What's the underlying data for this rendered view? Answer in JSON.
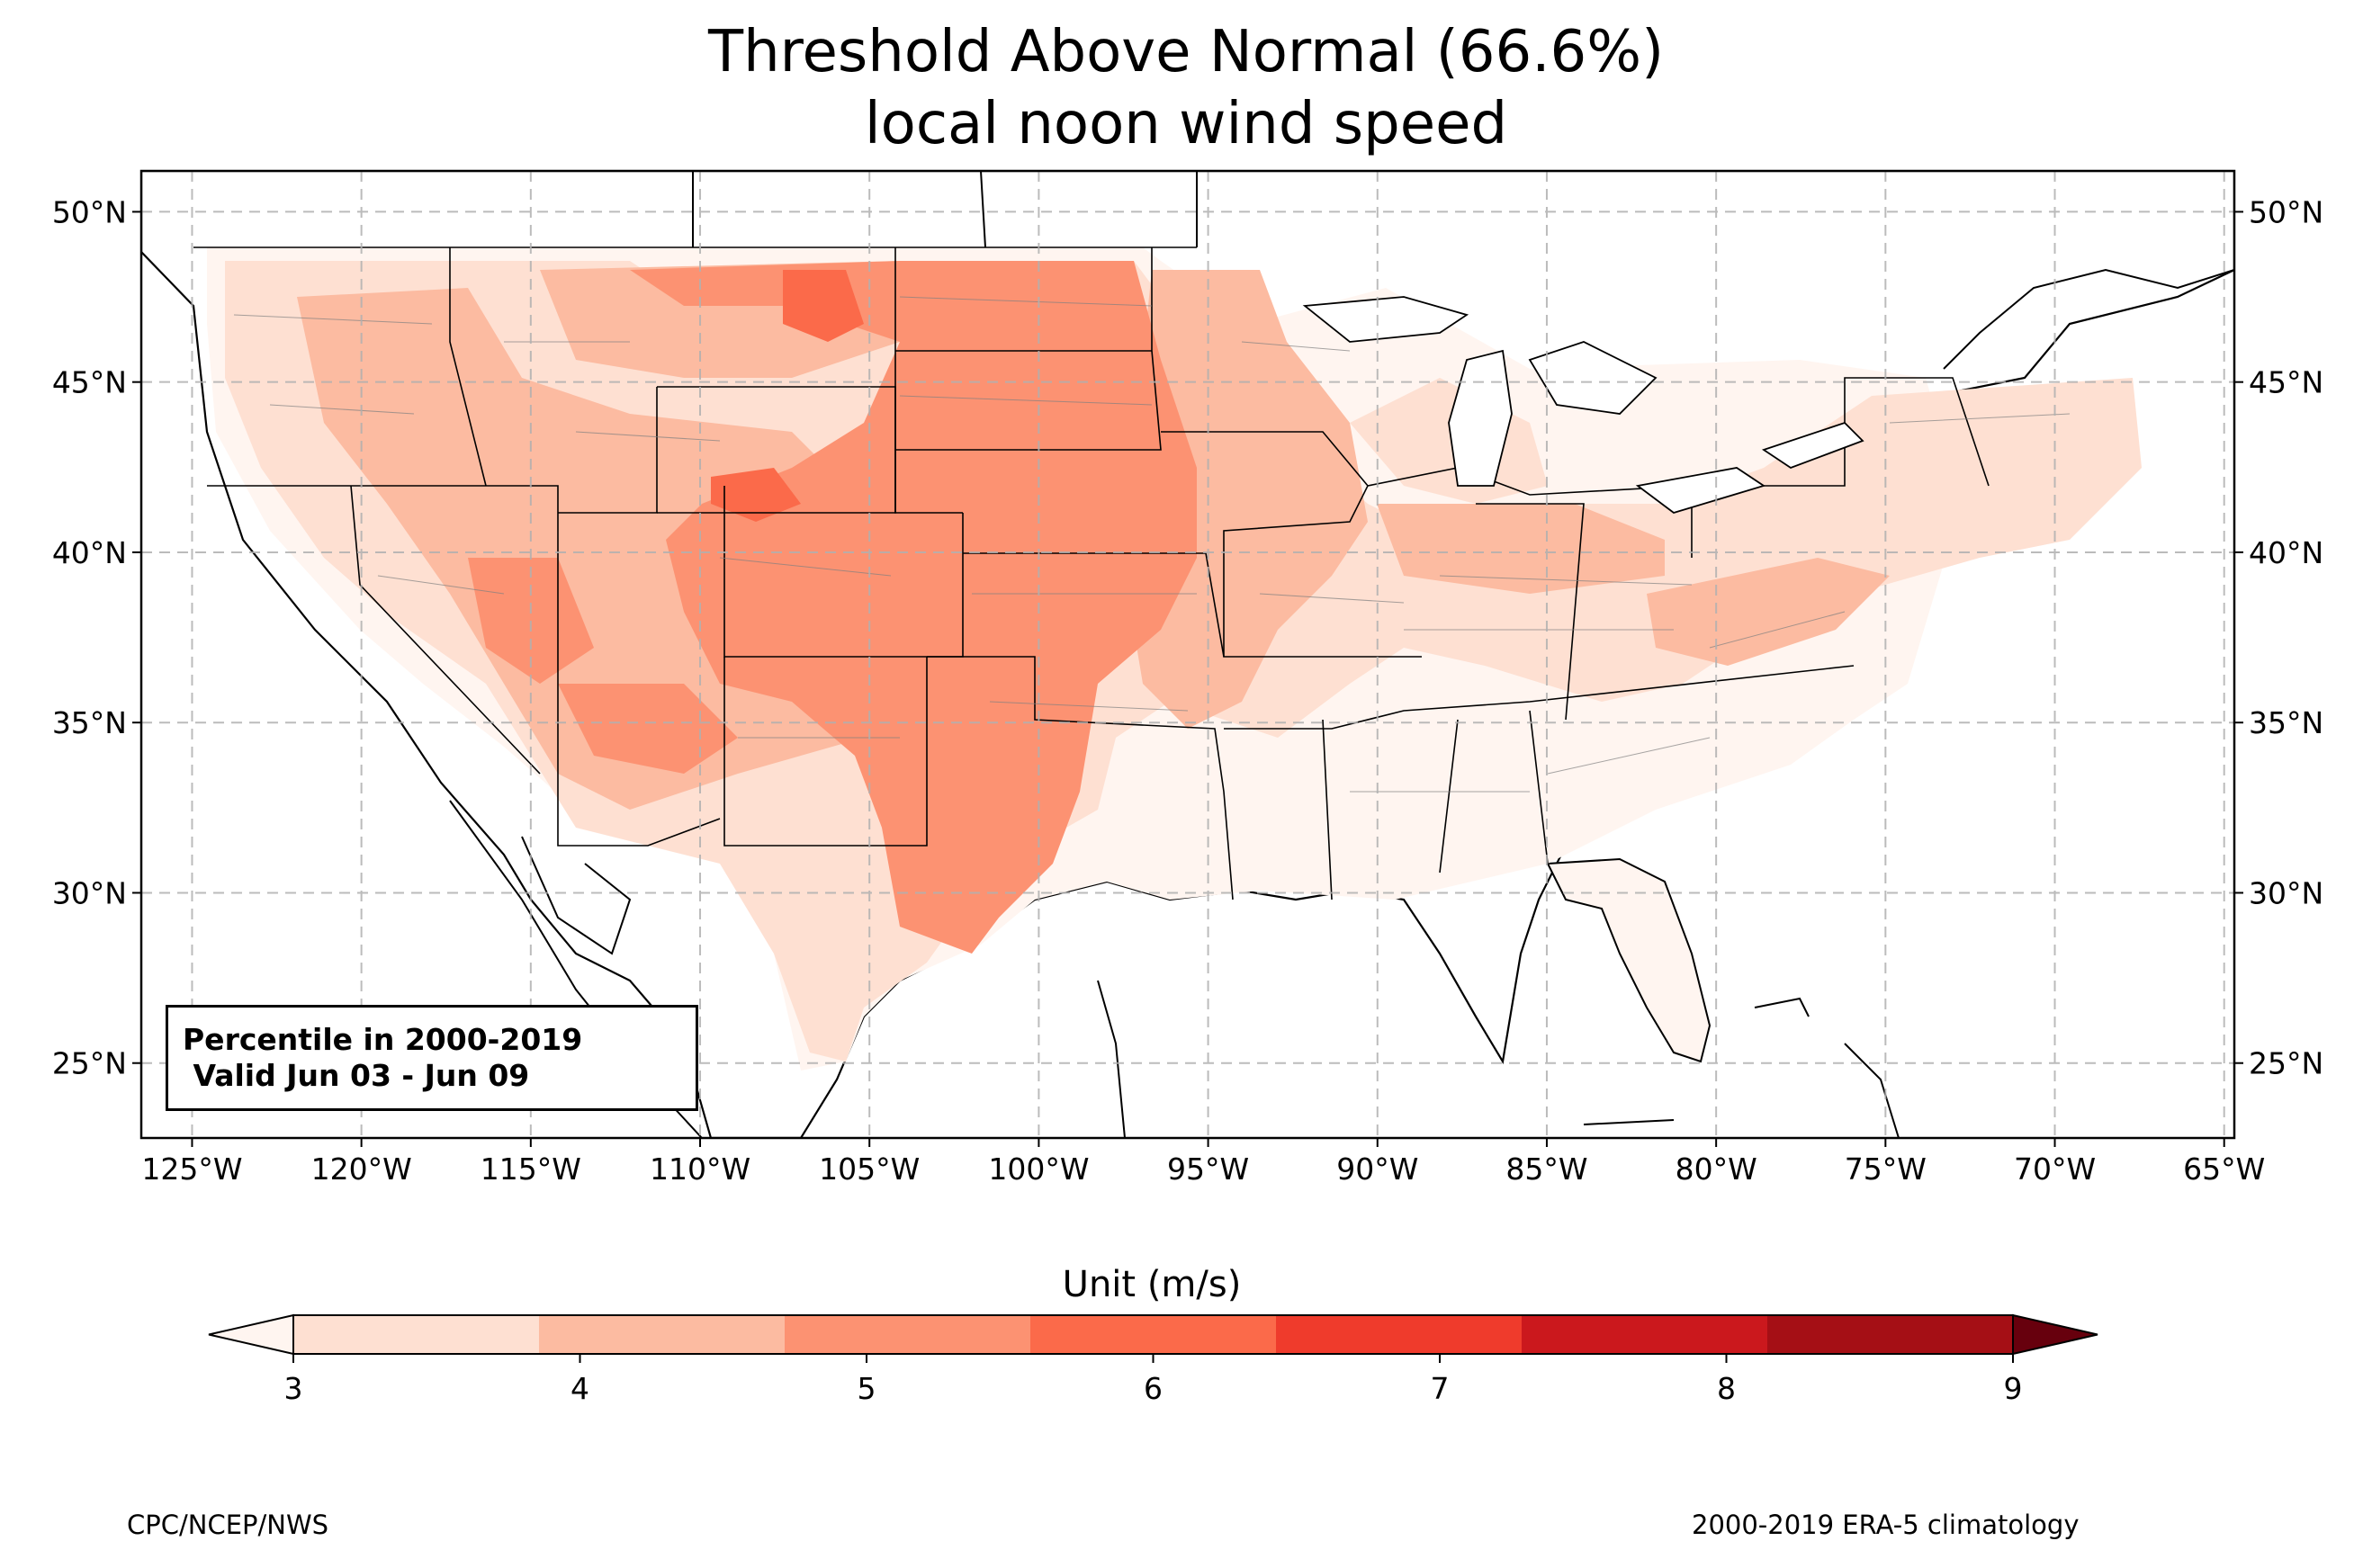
{
  "title": {
    "line1": "Threshold Above Normal (66.6%)",
    "line2": "local noon wind speed"
  },
  "map": {
    "lon_range": [
      -126.5,
      -64.7
    ],
    "lat_range": [
      22.8,
      51.2
    ],
    "lon_ticks": [
      {
        "value": -125,
        "label": "125°W"
      },
      {
        "value": -120,
        "label": "120°W"
      },
      {
        "value": -115,
        "label": "115°W"
      },
      {
        "value": -110,
        "label": "110°W"
      },
      {
        "value": -105,
        "label": "105°W"
      },
      {
        "value": -100,
        "label": "100°W"
      },
      {
        "value": -95,
        "label": "95°W"
      },
      {
        "value": -90,
        "label": "90°W"
      },
      {
        "value": -85,
        "label": "85°W"
      },
      {
        "value": -80,
        "label": "80°W"
      },
      {
        "value": -75,
        "label": "75°W"
      },
      {
        "value": -70,
        "label": "70°W"
      },
      {
        "value": -65,
        "label": "65°W"
      }
    ],
    "lat_ticks": [
      {
        "value": 25,
        "label": "25°N"
      },
      {
        "value": 30,
        "label": "30°N"
      },
      {
        "value": 35,
        "label": "35°N"
      },
      {
        "value": 40,
        "label": "40°N"
      },
      {
        "value": 45,
        "label": "45°N"
      },
      {
        "value": 50,
        "label": "50°N"
      }
    ],
    "gridlines": true,
    "info_box": {
      "line1": "Percentile in 2000-2019",
      "line2": " Valid Jun 03 - Jun 09"
    }
  },
  "colorbar": {
    "label": "Unit (m/s)",
    "ticks": [
      "3",
      "4",
      "5",
      "6",
      "7",
      "8",
      "9"
    ],
    "colors": [
      "#fee0d2",
      "#fcbba1",
      "#fc9272",
      "#fb6a4a",
      "#ef3b2c",
      "#cb181d",
      "#a50f15"
    ],
    "under_color": "#fff5f0",
    "over_color": "#67000d"
  },
  "credits": {
    "left": "CPC/NCEP/NWS",
    "right": "2000-2019 ERA-5 climatology"
  }
}
